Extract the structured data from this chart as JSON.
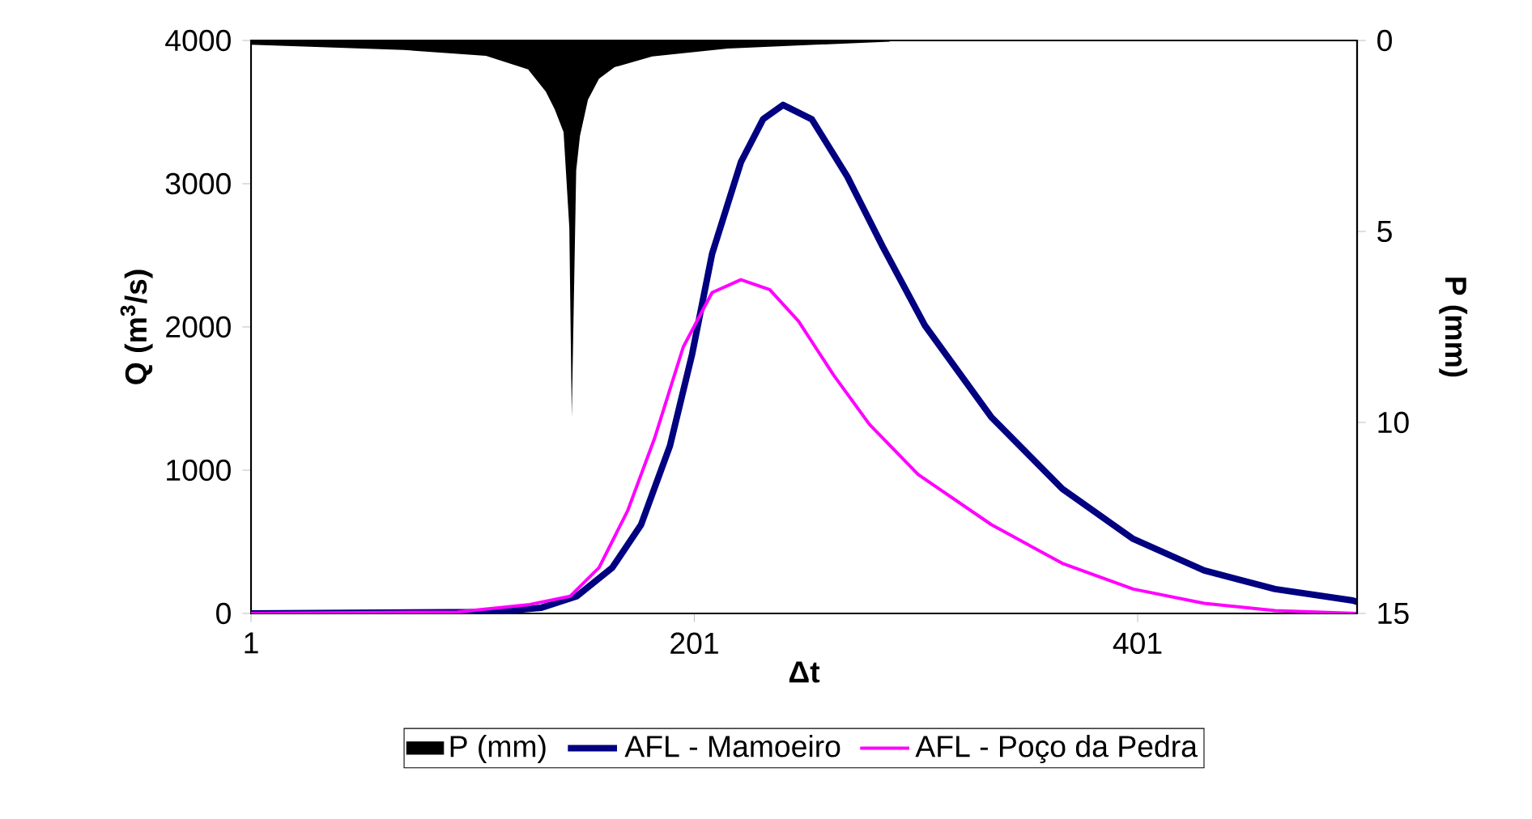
{
  "chart_data": {
    "type": "line",
    "xlabel": "**Δt**",
    "ylabel": "**Q (m$^{3}$/s)**",
    "y2label": "**P (mm)**",
    "xlim": [
      1,
      500
    ],
    "xticks": [
      1,
      201,
      401
    ],
    "ylim": [
      0,
      4000
    ],
    "yticks": [
      0,
      1000,
      2000,
      3000,
      4000
    ],
    "y2lim": [
      15,
      0
    ],
    "y2ticks": [
      0,
      5,
      10,
      15
    ],
    "legend": "bottom",
    "marker": "none",
    "series": [
      {
        "name": "P (mm)",
        "type": "area",
        "axis": "y2",
        "color": "#000000",
        "x": [
          1,
          70,
          107,
          126,
          134,
          138,
          142,
          144.6,
          145.7,
          147.7,
          149.4,
          153,
          158,
          165,
          182,
          216,
          289,
          290
        ],
        "values": [
          0.11,
          0.25,
          0.4,
          0.76,
          1.34,
          1.8,
          2.4,
          4.9,
          9.86,
          3.4,
          2.5,
          1.55,
          1.0,
          0.7,
          0.42,
          0.21,
          0.03,
          0
        ]
      },
      {
        "name": "AFL - Mamoeiro",
        "color": "#000080",
        "x": [
          1,
          110,
          132,
          148,
          164,
          177,
          190,
          200,
          209,
          222,
          232,
          241,
          254,
          270,
          286,
          305,
          335,
          367,
          399,
          431,
          463,
          498,
          500
        ],
        "values": [
          0,
          10,
          40,
          120,
          320,
          620,
          1170,
          1810,
          2510,
          3150,
          3450,
          3550,
          3450,
          3050,
          2560,
          2010,
          1370,
          870,
          520,
          300,
          170,
          90,
          80
        ]
      },
      {
        "name": "AFL - Poço da Pedra",
        "color": "#ff00ff",
        "x": [
          1,
          94,
          126,
          145,
          158,
          171,
          183,
          196,
          209,
          222,
          235,
          248,
          264,
          280,
          302,
          335,
          367,
          399,
          431,
          463,
          500
        ],
        "values": [
          0,
          10,
          60,
          120,
          320,
          720,
          1220,
          1860,
          2240,
          2330,
          2260,
          2040,
          1660,
          1320,
          970,
          620,
          350,
          170,
          70,
          20,
          0
        ]
      }
    ]
  }
}
